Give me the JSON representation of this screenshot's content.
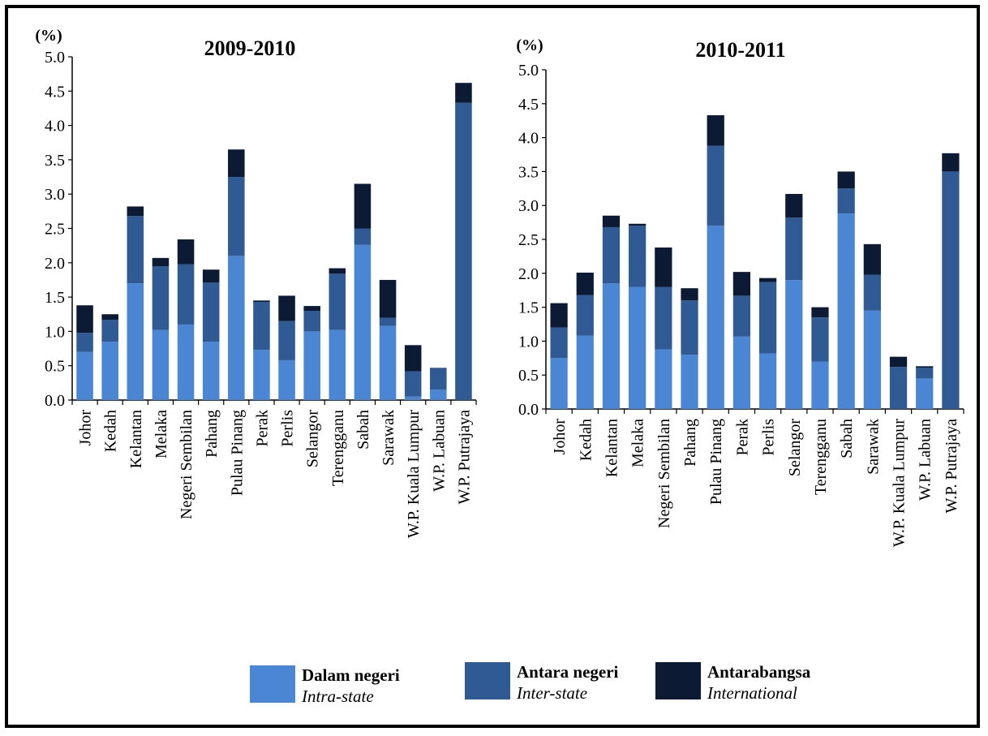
{
  "chart_data": [
    {
      "type": "bar",
      "stacked": true,
      "title": "2009-2010",
      "ylabel": "(%)",
      "ylim": [
        0,
        5.0
      ],
      "yticks": [
        "0.0",
        "0.5",
        "1.0",
        "1.5",
        "2.0",
        "2.5",
        "3.0",
        "3.5",
        "4.0",
        "4.5",
        "5.0"
      ],
      "grid": false,
      "categories": [
        "Johor",
        "Kedah",
        "Kelantan",
        "Melaka",
        "Negeri Sembilan",
        "Pahang",
        "Pulau Pinang",
        "Perak",
        "Perlis",
        "Selangor",
        "Terengganu",
        "Sabah",
        "Sarawak",
        "W.P. Kuala Lumpur",
        "W.P. Labuan",
        "W.P. Putrajaya"
      ],
      "series": [
        {
          "name": "Dalam negeri",
          "values": [
            0.7,
            0.85,
            1.7,
            1.02,
            1.1,
            0.85,
            2.1,
            0.73,
            0.58,
            1.0,
            1.02,
            2.26,
            1.08,
            0.05,
            0.15,
            0.0
          ]
        },
        {
          "name": "Antara negeri",
          "values": [
            0.28,
            0.32,
            0.98,
            0.93,
            0.88,
            0.86,
            1.15,
            0.7,
            0.57,
            0.3,
            0.82,
            0.24,
            0.12,
            0.37,
            0.32,
            4.33
          ]
        },
        {
          "name": "Antarabangsa",
          "values": [
            0.4,
            0.08,
            0.14,
            0.12,
            0.36,
            0.19,
            0.4,
            0.02,
            0.37,
            0.07,
            0.08,
            0.65,
            0.55,
            0.38,
            0.0,
            0.29
          ]
        }
      ]
    },
    {
      "type": "bar",
      "stacked": true,
      "title": "2010-2011",
      "ylabel": "(%)",
      "ylim": [
        0,
        5.0
      ],
      "yticks": [
        "0.0",
        "0.5",
        "1.0",
        "1.5",
        "2.0",
        "2.5",
        "3.0",
        "3.5",
        "4.0",
        "4.5",
        "5.0"
      ],
      "grid": false,
      "categories": [
        "Johor",
        "Kedah",
        "Kelantan",
        "Melaka",
        "Negeri Sembilan",
        "Pahang",
        "Pulau Pinang",
        "Perak",
        "Perlis",
        "Selangor",
        "Terengganu",
        "Sabah",
        "Sarawak",
        "W.P. Kuala Lumpur",
        "W.P. Labuan",
        "W.P. Putrajaya"
      ],
      "series": [
        {
          "name": "Dalam negeri",
          "values": [
            0.75,
            1.08,
            1.85,
            1.8,
            0.88,
            0.8,
            2.7,
            1.07,
            0.82,
            1.9,
            0.7,
            2.88,
            1.45,
            0.0,
            0.45,
            0.0
          ]
        },
        {
          "name": "Antara negeri",
          "values": [
            0.45,
            0.6,
            0.83,
            0.9,
            0.92,
            0.8,
            1.18,
            0.6,
            1.05,
            0.92,
            0.65,
            0.37,
            0.53,
            0.62,
            0.16,
            3.5
          ]
        },
        {
          "name": "Antarabangsa",
          "values": [
            0.36,
            0.33,
            0.17,
            0.03,
            0.58,
            0.18,
            0.45,
            0.35,
            0.06,
            0.35,
            0.15,
            0.25,
            0.45,
            0.15,
            0.02,
            0.27
          ]
        }
      ]
    }
  ],
  "legend": [
    {
      "label": "Dalam negeri",
      "sublabel": "Intra-state",
      "color": "#4a86d4"
    },
    {
      "label": "Antara negeri",
      "sublabel": "Inter-state",
      "color": "#2f5a94"
    },
    {
      "label": "Antarabangsa",
      "sublabel": "International",
      "color": "#0d1a33"
    }
  ],
  "colors": {
    "intra": "#4a86d4",
    "inter": "#2f5a94",
    "international": "#0d1a33",
    "axis": "#000000"
  }
}
